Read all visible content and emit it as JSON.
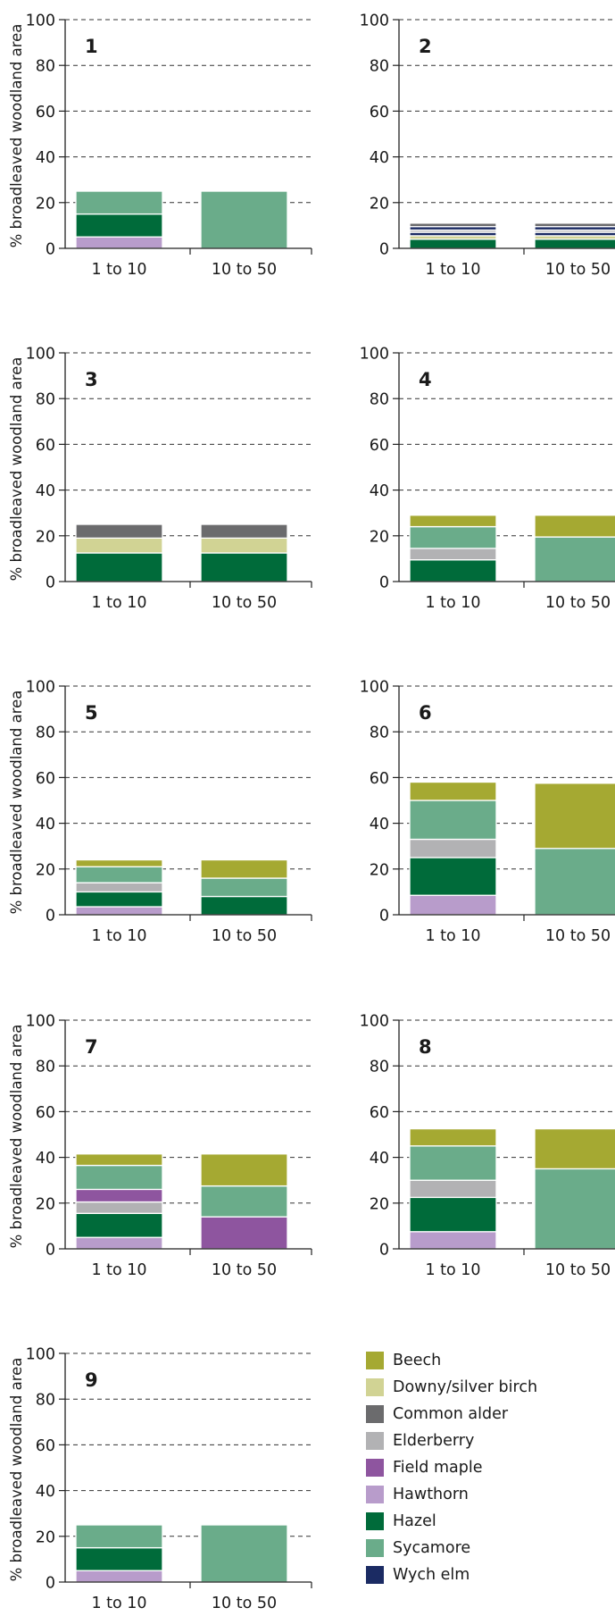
{
  "y_axis_label": "% broadleaved woodland area",
  "species_colors": {
    "Beech": "#a5a932",
    "Downy/silver birch": "#d1d394",
    "Common alder": "#6b6b6d",
    "Elderberry": "#b2b2b4",
    "Field maple": "#8e559f",
    "Hawthorn": "#b89ccb",
    "Hazel": "#006b3a",
    "Sycamore": "#6aac8a",
    "Wych elm": "#1b2b63"
  },
  "legend": [
    "Beech",
    "Downy/silver birch",
    "Common alder",
    "Elderberry",
    "Field maple",
    "Hawthorn",
    "Hazel",
    "Sycamore",
    "Wych elm"
  ],
  "chart_data": [
    {
      "type": "bar",
      "stacked": true,
      "title": "1",
      "categories": [
        "1 to 10",
        "10 to 50"
      ],
      "ylabel": "% broadleaved woodland area",
      "ylim": [
        0,
        100
      ],
      "yticks": [
        0,
        20,
        40,
        60,
        80,
        100
      ],
      "grid": "dashed horizontal",
      "series": [
        {
          "name": "Hawthorn",
          "values": [
            5,
            0
          ]
        },
        {
          "name": "Hazel",
          "values": [
            10,
            0
          ]
        },
        {
          "name": "Sycamore",
          "values": [
            10,
            25
          ]
        }
      ]
    },
    {
      "type": "bar",
      "stacked": true,
      "title": "2",
      "categories": [
        "1 to 10",
        "10 to 50"
      ],
      "ylabel": "% broadleaved woodland area",
      "ylim": [
        0,
        100
      ],
      "yticks": [
        0,
        20,
        40,
        60,
        80,
        100
      ],
      "grid": "dashed horizontal",
      "series": [
        {
          "name": "Hazel",
          "values": [
            4,
            4
          ]
        },
        {
          "name": "Downy/silver birch",
          "values": [
            1.5,
            1.5
          ]
        },
        {
          "name": "Wych elm",
          "values": [
            1.5,
            1.5
          ]
        },
        {
          "name": "Elderberry",
          "values": [
            1,
            1
          ]
        },
        {
          "name": "Wych elm",
          "values": [
            1.5,
            1.5
          ]
        },
        {
          "name": "Common alder",
          "values": [
            1.5,
            1.5
          ]
        }
      ]
    },
    {
      "type": "bar",
      "stacked": true,
      "title": "3",
      "categories": [
        "1 to 10",
        "10 to 50"
      ],
      "ylabel": "% broadleaved woodland area",
      "ylim": [
        0,
        100
      ],
      "yticks": [
        0,
        20,
        40,
        60,
        80,
        100
      ],
      "grid": "dashed horizontal",
      "series": [
        {
          "name": "Hazel",
          "values": [
            12.5,
            12.5
          ]
        },
        {
          "name": "Downy/silver birch",
          "values": [
            6.5,
            6.5
          ]
        },
        {
          "name": "Common alder",
          "values": [
            6,
            6
          ]
        }
      ]
    },
    {
      "type": "bar",
      "stacked": true,
      "title": "4",
      "categories": [
        "1 to 10",
        "10 to 50"
      ],
      "ylabel": "% broadleaved woodland area",
      "ylim": [
        0,
        100
      ],
      "yticks": [
        0,
        20,
        40,
        60,
        80,
        100
      ],
      "grid": "dashed horizontal",
      "series": [
        {
          "name": "Hazel",
          "values": [
            9.5,
            0
          ]
        },
        {
          "name": "Elderberry",
          "values": [
            5,
            0
          ]
        },
        {
          "name": "Sycamore",
          "values": [
            9.5,
            19.5
          ]
        },
        {
          "name": "Beech",
          "values": [
            5,
            9.5
          ]
        }
      ]
    },
    {
      "type": "bar",
      "stacked": true,
      "title": "5",
      "categories": [
        "1 to 10",
        "10 to 50"
      ],
      "ylabel": "% broadleaved woodland area",
      "ylim": [
        0,
        100
      ],
      "yticks": [
        0,
        20,
        40,
        60,
        80,
        100
      ],
      "grid": "dashed horizontal",
      "series": [
        {
          "name": "Hawthorn",
          "values": [
            3.5,
            0
          ]
        },
        {
          "name": "Hazel",
          "values": [
            6.5,
            8
          ]
        },
        {
          "name": "Elderberry",
          "values": [
            4,
            0
          ]
        },
        {
          "name": "Sycamore",
          "values": [
            7,
            8
          ]
        },
        {
          "name": "Beech",
          "values": [
            3,
            8
          ]
        }
      ]
    },
    {
      "type": "bar",
      "stacked": true,
      "title": "6",
      "categories": [
        "1 to 10",
        "10 to 50"
      ],
      "ylabel": "% broadleaved woodland area",
      "ylim": [
        0,
        100
      ],
      "yticks": [
        0,
        20,
        40,
        60,
        80,
        100
      ],
      "grid": "dashed horizontal",
      "series": [
        {
          "name": "Hawthorn",
          "values": [
            8.5,
            0
          ]
        },
        {
          "name": "Hazel",
          "values": [
            16.5,
            0
          ]
        },
        {
          "name": "Elderberry",
          "values": [
            8,
            0
          ]
        },
        {
          "name": "Sycamore",
          "values": [
            17,
            29
          ]
        },
        {
          "name": "Beech",
          "values": [
            8,
            28.5
          ]
        }
      ]
    },
    {
      "type": "bar",
      "stacked": true,
      "title": "7",
      "categories": [
        "1 to 10",
        "10 to 50"
      ],
      "ylabel": "% broadleaved woodland area",
      "ylim": [
        0,
        100
      ],
      "yticks": [
        0,
        20,
        40,
        60,
        80,
        100
      ],
      "grid": "dashed horizontal",
      "series": [
        {
          "name": "Hawthorn",
          "values": [
            5,
            0
          ]
        },
        {
          "name": "Hazel",
          "values": [
            10.5,
            0
          ]
        },
        {
          "name": "Elderberry",
          "values": [
            5,
            0
          ]
        },
        {
          "name": "Field maple",
          "values": [
            5.5,
            14
          ]
        },
        {
          "name": "Sycamore",
          "values": [
            10.5,
            13.5
          ]
        },
        {
          "name": "Beech",
          "values": [
            5,
            14
          ]
        }
      ]
    },
    {
      "type": "bar",
      "stacked": true,
      "title": "8",
      "categories": [
        "1 to 10",
        "10 to 50"
      ],
      "ylabel": "% broadleaved woodland area",
      "ylim": [
        0,
        100
      ],
      "yticks": [
        0,
        20,
        40,
        60,
        80,
        100
      ],
      "grid": "dashed horizontal",
      "series": [
        {
          "name": "Hawthorn",
          "values": [
            7.5,
            0
          ]
        },
        {
          "name": "Hazel",
          "values": [
            15,
            0
          ]
        },
        {
          "name": "Elderberry",
          "values": [
            7.5,
            0
          ]
        },
        {
          "name": "Sycamore",
          "values": [
            15,
            35
          ]
        },
        {
          "name": "Beech",
          "values": [
            7.5,
            17.5
          ]
        }
      ]
    },
    {
      "type": "bar",
      "stacked": true,
      "title": "9",
      "categories": [
        "1 to 10",
        "10 to 50"
      ],
      "ylabel": "% broadleaved woodland area",
      "ylim": [
        0,
        100
      ],
      "yticks": [
        0,
        20,
        40,
        60,
        80,
        100
      ],
      "grid": "dashed horizontal",
      "series": [
        {
          "name": "Hawthorn",
          "values": [
            5,
            0
          ]
        },
        {
          "name": "Hazel",
          "values": [
            10,
            0
          ]
        },
        {
          "name": "Sycamore",
          "values": [
            10,
            25
          ]
        }
      ]
    }
  ]
}
